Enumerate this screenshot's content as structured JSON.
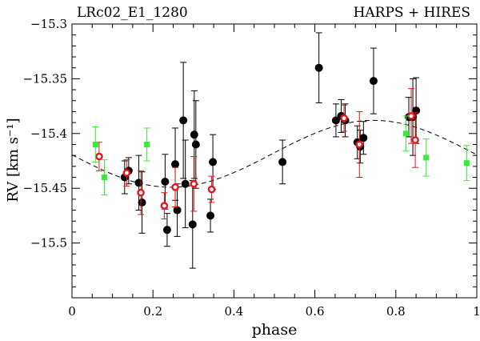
{
  "chart_data": {
    "type": "scatter",
    "title_left": "LRc02_E1_1280",
    "title_right": "HARPS + HIRES",
    "xlabel": "phase",
    "ylabel": "RV  [km s⁻¹]",
    "xlim": [
      0,
      1
    ],
    "ylim": [
      -15.55,
      -15.3
    ],
    "xticks": [
      0,
      0.2,
      0.4,
      0.6,
      0.8,
      1
    ],
    "xtick_labels": [
      "0",
      "0.2",
      "0.4",
      "0.6",
      "0.8",
      "1"
    ],
    "yticks": [
      -15.5,
      -15.45,
      -15.4,
      -15.35,
      -15.3
    ],
    "ytick_labels": [
      "−15.5",
      "−15.45",
      "−15.4",
      "−15.35",
      "−15.3"
    ],
    "colors": {
      "black": "#000000",
      "red": "#e8141e",
      "green": "#33ee33"
    },
    "series": [
      {
        "marker": "filled-circle",
        "color": "black",
        "points": [
          {
            "x": 0.13,
            "y": -15.44,
            "err": 0.015
          },
          {
            "x": 0.14,
            "y": -15.434,
            "err": 0.012
          },
          {
            "x": 0.165,
            "y": -15.445,
            "err": 0.025
          },
          {
            "x": 0.173,
            "y": -15.463,
            "err": 0.028
          },
          {
            "x": 0.23,
            "y": -15.444,
            "err": 0.025
          },
          {
            "x": 0.235,
            "y": -15.488,
            "err": 0.015
          },
          {
            "x": 0.255,
            "y": -15.428,
            "err": 0.033
          },
          {
            "x": 0.26,
            "y": -15.47,
            "err": 0.024
          },
          {
            "x": 0.275,
            "y": -15.388,
            "err": 0.053
          },
          {
            "x": 0.28,
            "y": -15.446,
            "err": 0.04
          },
          {
            "x": 0.298,
            "y": -15.483,
            "err": 0.04
          },
          {
            "x": 0.302,
            "y": -15.401,
            "err": 0.04
          },
          {
            "x": 0.306,
            "y": -15.41,
            "err": 0.04
          },
          {
            "x": 0.342,
            "y": -15.475,
            "err": 0.015
          },
          {
            "x": 0.348,
            "y": -15.426,
            "err": 0.025
          },
          {
            "x": 0.52,
            "y": -15.426,
            "err": 0.02
          },
          {
            "x": 0.61,
            "y": -15.34,
            "err": 0.032
          },
          {
            "x": 0.652,
            "y": -15.388,
            "err": 0.015
          },
          {
            "x": 0.665,
            "y": -15.384,
            "err": 0.015
          },
          {
            "x": 0.675,
            "y": -15.388,
            "err": 0.015
          },
          {
            "x": 0.705,
            "y": -15.408,
            "err": 0.015
          },
          {
            "x": 0.712,
            "y": -15.412,
            "err": 0.015
          },
          {
            "x": 0.72,
            "y": -15.404,
            "err": 0.015
          },
          {
            "x": 0.745,
            "y": -15.352,
            "err": 0.03
          },
          {
            "x": 0.832,
            "y": -15.385,
            "err": 0.018
          },
          {
            "x": 0.842,
            "y": -15.385,
            "err": 0.035
          },
          {
            "x": 0.85,
            "y": -15.379,
            "err": 0.03
          }
        ]
      },
      {
        "marker": "open-circle",
        "color": "red",
        "points": [
          {
            "x": 0.067,
            "y": -15.421,
            "err": 0.013
          },
          {
            "x": 0.135,
            "y": -15.436,
            "err": 0.012
          },
          {
            "x": 0.17,
            "y": -15.454,
            "err": 0.02
          },
          {
            "x": 0.228,
            "y": -15.466,
            "err": 0.012
          },
          {
            "x": 0.255,
            "y": -15.449,
            "err": 0.018
          },
          {
            "x": 0.301,
            "y": -15.446,
            "err": 0.025
          },
          {
            "x": 0.345,
            "y": -15.451,
            "err": 0.012
          },
          {
            "x": 0.672,
            "y": -15.386,
            "err": 0.012
          },
          {
            "x": 0.71,
            "y": -15.41,
            "err": 0.03
          },
          {
            "x": 0.838,
            "y": -15.384,
            "err": 0.025
          },
          {
            "x": 0.848,
            "y": -15.406,
            "err": 0.025
          }
        ]
      },
      {
        "marker": "filled-square",
        "color": "green",
        "points": [
          {
            "x": 0.058,
            "y": -15.41,
            "err": 0.016
          },
          {
            "x": 0.08,
            "y": -15.44,
            "err": 0.016
          },
          {
            "x": 0.185,
            "y": -15.41,
            "err": 0.015
          },
          {
            "x": 0.825,
            "y": -15.4,
            "err": 0.016
          },
          {
            "x": 0.875,
            "y": -15.422,
            "err": 0.017
          },
          {
            "x": 0.975,
            "y": -15.427,
            "err": 0.016
          }
        ]
      }
    ],
    "model": {
      "style": "dashed",
      "gamma": -15.4185,
      "amplitude": 0.0305,
      "phase_of_max": 0.745
    }
  }
}
